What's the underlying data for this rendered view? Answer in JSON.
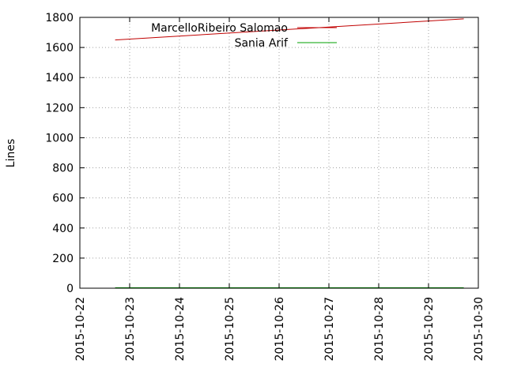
{
  "chart_data": {
    "type": "line",
    "title": "",
    "xlabel": "",
    "ylabel": "Lines",
    "x_tick_labels": [
      "2015-10-22",
      "2015-10-23",
      "2015-10-24",
      "2015-10-25",
      "2015-10-26",
      "2015-10-27",
      "2015-10-28",
      "2015-10-29",
      "2015-10-30"
    ],
    "xlim": [
      "2015-10-22",
      "2015-10-30"
    ],
    "y_tick_labels": [
      "0",
      "200",
      "400",
      "600",
      "800",
      "1000",
      "1200",
      "1400",
      "1600",
      "1800"
    ],
    "y_ticks": [
      0,
      200,
      400,
      600,
      800,
      1000,
      1200,
      1400,
      1600,
      1800
    ],
    "ylim": [
      0,
      1800
    ],
    "grid": true,
    "legend_position": "top-right",
    "series": [
      {
        "name": "MarcelloRibeiro Salomao",
        "color": "#c00000",
        "x": [
          "2015-10-22T17:00",
          "2015-10-29T17:00"
        ],
        "y": [
          1650,
          1790
        ]
      },
      {
        "name": "Sania Arif",
        "color": "#00a000",
        "x": [
          "2015-10-22T17:00",
          "2015-10-29T17:00"
        ],
        "y": [
          3,
          3
        ]
      }
    ]
  }
}
